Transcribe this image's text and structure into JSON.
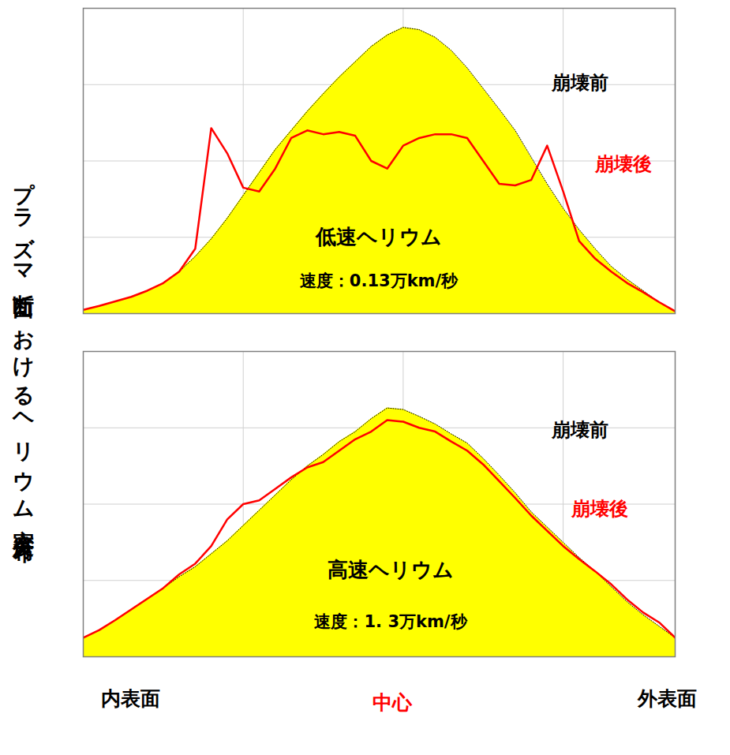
{
  "ylabel": "プラズマ断面におけるヘリウム密度分布",
  "chart_data": [
    {
      "type": "area",
      "annotations": [
        "低速ヘリウム",
        "速度：0.13万km/秒"
      ],
      "x": [
        0,
        0.1,
        0.2,
        0.3,
        0.4,
        0.5,
        0.6,
        0.7,
        0.8,
        0.9,
        1.0,
        1.1,
        1.2,
        1.3,
        1.4,
        1.5,
        1.6,
        1.7,
        1.8,
        1.9,
        2.0,
        2.1,
        2.2,
        2.3,
        2.4,
        2.5,
        2.6,
        2.7,
        2.8,
        2.9,
        3.0,
        3.1,
        3.2,
        3.3,
        3.4,
        3.5,
        3.6,
        3.7
      ],
      "series": [
        {
          "name": "崩壊前",
          "type": "area",
          "color": "#ffff00",
          "values": [
            0.05,
            0.1,
            0.16,
            0.22,
            0.3,
            0.4,
            0.55,
            0.75,
            0.98,
            1.25,
            1.55,
            1.85,
            2.15,
            2.4,
            2.65,
            2.88,
            3.1,
            3.3,
            3.5,
            3.65,
            3.75,
            3.72,
            3.62,
            3.45,
            3.22,
            2.95,
            2.68,
            2.4,
            2.05,
            1.7,
            1.38,
            1.1,
            0.85,
            0.62,
            0.45,
            0.3,
            0.15,
            0.03
          ]
        },
        {
          "name": "崩壊後",
          "type": "line",
          "color": "#ff0000",
          "values": [
            0.05,
            0.1,
            0.16,
            0.22,
            0.3,
            0.4,
            0.55,
            0.85,
            2.43,
            2.1,
            1.65,
            1.6,
            1.9,
            2.3,
            2.4,
            2.35,
            2.38,
            2.33,
            2.0,
            1.9,
            2.2,
            2.3,
            2.35,
            2.35,
            2.3,
            2.0,
            1.7,
            1.68,
            1.75,
            2.2,
            1.6,
            0.95,
            0.72,
            0.55,
            0.4,
            0.28,
            0.15,
            0.03
          ]
        }
      ],
      "xlim": [
        0,
        3.7
      ],
      "xticks": [
        0,
        1,
        2,
        3
      ],
      "ylim": [
        0,
        4
      ],
      "yticks": [
        0,
        1,
        2,
        3,
        4
      ],
      "grid": true,
      "tick_labels": false
    },
    {
      "type": "area",
      "annotations": [
        "高速ヘリウム",
        "速度：1. 3万km/秒"
      ],
      "x_annotations": [
        "内表面",
        "中心",
        "外表面"
      ],
      "x": [
        0,
        0.1,
        0.2,
        0.3,
        0.4,
        0.5,
        0.6,
        0.7,
        0.8,
        0.9,
        1.0,
        1.1,
        1.2,
        1.3,
        1.4,
        1.5,
        1.6,
        1.7,
        1.8,
        1.9,
        2.0,
        2.1,
        2.2,
        2.3,
        2.4,
        2.5,
        2.6,
        2.7,
        2.8,
        2.9,
        3.0,
        3.1,
        3.2,
        3.3,
        3.4,
        3.5,
        3.6,
        3.7
      ],
      "series": [
        {
          "name": "崩壊前",
          "type": "area",
          "color": "#ffff00",
          "values": [
            0.25,
            0.35,
            0.48,
            0.62,
            0.76,
            0.9,
            1.05,
            1.18,
            1.35,
            1.52,
            1.72,
            1.92,
            2.12,
            2.32,
            2.5,
            2.65,
            2.82,
            2.95,
            3.12,
            3.26,
            3.24,
            3.15,
            3.05,
            2.92,
            2.8,
            2.6,
            2.38,
            2.15,
            1.9,
            1.7,
            1.5,
            1.3,
            1.12,
            0.92,
            0.72,
            0.55,
            0.4,
            0.25
          ]
        },
        {
          "name": "崩壊後",
          "type": "line",
          "color": "#ff0000",
          "values": [
            0.25,
            0.35,
            0.48,
            0.62,
            0.76,
            0.9,
            1.08,
            1.22,
            1.45,
            1.8,
            2.0,
            2.05,
            2.2,
            2.35,
            2.48,
            2.55,
            2.7,
            2.85,
            2.95,
            3.1,
            3.08,
            3.0,
            2.95,
            2.82,
            2.7,
            2.52,
            2.3,
            2.08,
            1.85,
            1.65,
            1.45,
            1.28,
            1.12,
            0.95,
            0.75,
            0.58,
            0.45,
            0.25
          ]
        }
      ],
      "xlim": [
        0,
        3.7
      ],
      "xticks": [
        0,
        1,
        2,
        3
      ],
      "ylim": [
        0,
        4
      ],
      "yticks": [
        0,
        1,
        2,
        3,
        4
      ],
      "grid": true,
      "tick_labels": false
    }
  ]
}
